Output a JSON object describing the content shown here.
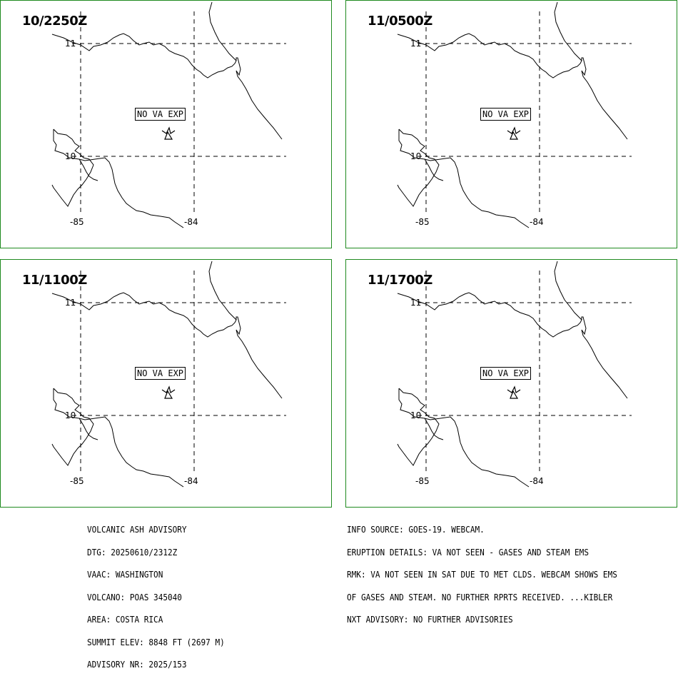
{
  "panels": [
    {
      "time": "10/2250Z",
      "forecast_label": "NO VA EXP"
    },
    {
      "time": "11/0500Z",
      "forecast_label": "NO VA EXP"
    },
    {
      "time": "11/1100Z",
      "forecast_label": "NO VA EXP"
    },
    {
      "time": "11/1700Z",
      "forecast_label": "NO VA EXP"
    }
  ],
  "grid_labels": {
    "lat_top": "11",
    "lat_bottom": "10",
    "lon_left": "-85",
    "lon_right": "-84"
  },
  "advisory_left": [
    "VOLCANIC ASH ADVISORY",
    "DTG: 20250610/2312Z",
    "VAAC: WASHINGTON",
    "VOLCANO: POAS 345040",
    "AREA: COSTA RICA",
    "SUMMIT ELEV: 8848 FT (2697 M)",
    "ADVISORY NR: 2025/153"
  ],
  "advisory_right": [
    "INFO SOURCE: GOES-19. WEBCAM.",
    "ERUPTION DETAILS: VA NOT SEEN - GASES AND STEAM EMS",
    "RMK: VA NOT SEEN IN SAT DUE TO MET CLDS. WEBCAM SHOWS EMS",
    "OF GASES AND STEAM. NO FURTHER RPRTS RECEIVED. ...KIBLER",
    "NXT ADVISORY: NO FURTHER ADVISORIES"
  ],
  "colors": {
    "panel_border": "#1f8a1f",
    "map_lines": "#000000"
  },
  "icons": {
    "volcano": "volcano-icon"
  }
}
